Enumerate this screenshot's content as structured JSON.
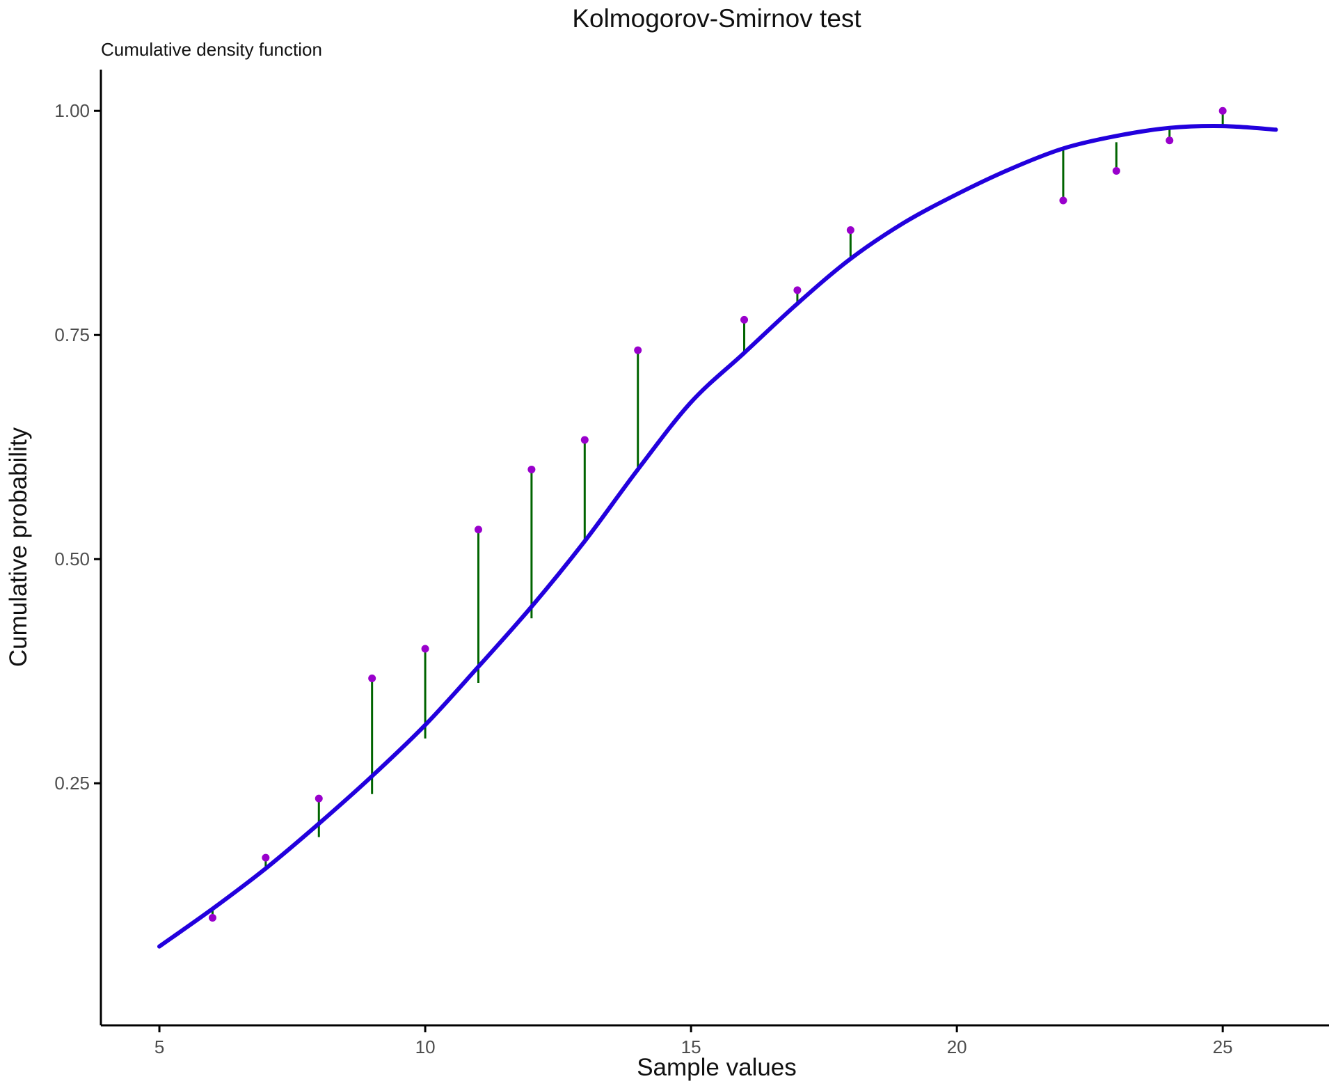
{
  "chart_data": {
    "type": "scatter",
    "title": "Kolmogorov-Smirnov test",
    "subtitle": "Cumulative density function",
    "xlabel": "Sample values",
    "ylabel": "Cumulative probability",
    "xlim": [
      3.9,
      27.0
    ],
    "ylim": [
      -0.02,
      1.046
    ],
    "x_ticks": [
      5,
      10,
      15,
      20,
      25
    ],
    "x_tick_labels": [
      "5",
      "10",
      "15",
      "20",
      "25"
    ],
    "y_ticks": [
      0.25,
      0.5,
      0.75,
      1.0
    ],
    "y_tick_labels": [
      "0.25",
      "0.50",
      "0.75",
      "1.00"
    ],
    "grid": false,
    "colors": {
      "cdf_line": "#2200dd",
      "points": "#9900cc",
      "segments": "#006400",
      "axis": "#000000"
    },
    "series": [
      {
        "role": "fitted-cdf-line",
        "points": [
          [
            5.0,
            0.068
          ],
          [
            6.0,
            0.11
          ],
          [
            7.0,
            0.155
          ],
          [
            8.0,
            0.205
          ],
          [
            9.0,
            0.258
          ],
          [
            10.0,
            0.315
          ],
          [
            11.0,
            0.38
          ],
          [
            12.0,
            0.447
          ],
          [
            13.0,
            0.52
          ],
          [
            14.0,
            0.6
          ],
          [
            15.0,
            0.675
          ],
          [
            16.0,
            0.73
          ],
          [
            17.0,
            0.785
          ],
          [
            18.0,
            0.835
          ],
          [
            19.0,
            0.875
          ],
          [
            20.0,
            0.907
          ],
          [
            21.0,
            0.935
          ],
          [
            22.0,
            0.958
          ],
          [
            23.0,
            0.972
          ],
          [
            24.0,
            0.981
          ],
          [
            25.0,
            0.983
          ],
          [
            26.0,
            0.979
          ]
        ]
      },
      {
        "role": "empirical-points",
        "x": [
          6,
          7,
          8,
          9,
          10,
          11,
          12,
          13,
          14,
          16,
          17,
          18,
          22,
          23,
          24,
          25
        ],
        "y": [
          0.1,
          0.167,
          0.233,
          0.367,
          0.4,
          0.533,
          0.6,
          0.633,
          0.733,
          0.767,
          0.8,
          0.867,
          0.9,
          0.933,
          0.967,
          1.0
        ]
      },
      {
        "role": "deviation-segments",
        "x": [
          6,
          7,
          8,
          9,
          10,
          11,
          12,
          13,
          14,
          16,
          17,
          18,
          22,
          23,
          24,
          25
        ],
        "y_from": [
          0.11,
          0.155,
          0.19,
          0.238,
          0.3,
          0.362,
          0.434,
          0.52,
          0.6,
          0.73,
          0.785,
          0.835,
          0.958,
          0.965,
          0.981,
          0.983
        ],
        "y_to": [
          0.1,
          0.167,
          0.233,
          0.367,
          0.4,
          0.533,
          0.6,
          0.633,
          0.733,
          0.767,
          0.8,
          0.867,
          0.9,
          0.933,
          0.967,
          1.0
        ]
      }
    ]
  }
}
